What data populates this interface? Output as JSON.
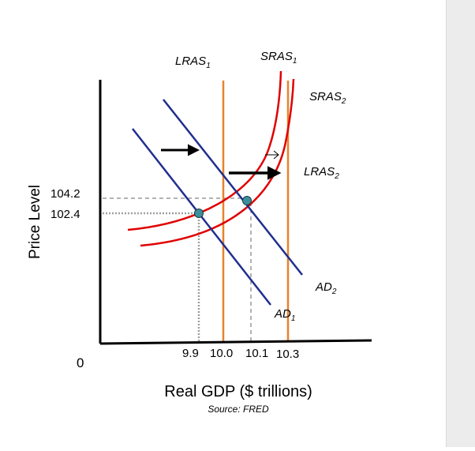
{
  "chart_data": {
    "type": "line",
    "title": "",
    "xlabel": "Real GDP ($ trillions)",
    "ylabel": "Price Level",
    "source": "Source: FRED",
    "origin_label": "0",
    "x_ticks": [
      "9.9",
      "10.0",
      "10.1",
      "10.3"
    ],
    "y_ticks": [
      "104.2",
      "102.4"
    ],
    "series": [
      {
        "name": "LRAS1",
        "label": "LRAS",
        "sub": "1",
        "kind": "vertical",
        "x": 10.0
      },
      {
        "name": "LRAS2",
        "label": "LRAS",
        "sub": "2",
        "kind": "vertical",
        "x": 10.3
      },
      {
        "name": "SRAS1",
        "label": "SRAS",
        "sub": "1",
        "kind": "upward-curve"
      },
      {
        "name": "SRAS2",
        "label": "SRAS",
        "sub": "2",
        "kind": "upward-curve"
      },
      {
        "name": "AD1",
        "label": "AD",
        "sub": "1",
        "kind": "downward-line"
      },
      {
        "name": "AD2",
        "label": "AD",
        "sub": "2",
        "kind": "downward-line"
      }
    ],
    "equilibria": [
      {
        "name": "initial",
        "x": 9.9,
        "y": 102.4
      },
      {
        "name": "new",
        "x": 10.1,
        "y": 104.2
      }
    ],
    "annotations": [
      "arrow: AD1 shifts right to AD2",
      "arrow: LRAS1 shifts right to LRAS2",
      "small arrow: SRAS1 shifts right to SRAS2"
    ],
    "colors": {
      "ad": "#1f2f8f",
      "sras": "#e00000",
      "lras": "#e8832a",
      "axis": "#000000",
      "point": "#3b8f9a",
      "guide_dotted": "#a0a0a0",
      "guide_dashed": "#666666"
    }
  }
}
